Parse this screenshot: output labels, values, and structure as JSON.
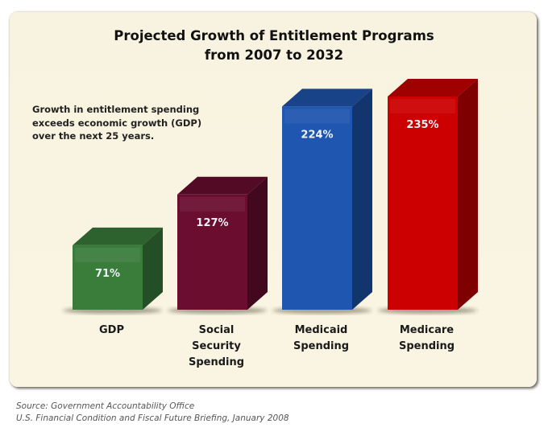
{
  "chart_data": {
    "type": "bar",
    "style": "3d-column",
    "title": "Projected Growth of Entitlement Programs",
    "subtitle": "from 2007 to 2032",
    "annotation": [
      "Growth in entitlement spending",
      "exceeds economic growth (GDP)",
      "over the next 25 years."
    ],
    "categories": [
      [
        "GDP"
      ],
      [
        "Social",
        "Security",
        "Spending"
      ],
      [
        "Medicaid",
        "Spending"
      ],
      [
        "Medicare",
        "Spending"
      ]
    ],
    "values": [
      71,
      127,
      224,
      235
    ],
    "value_labels": [
      "71%",
      "127%",
      "224%",
      "235%"
    ],
    "colors": [
      "#3a7d3b",
      "#6a0d2e",
      "#1f56b0",
      "#cc0000"
    ],
    "xlabel": "",
    "ylabel": "",
    "ylim": [
      0,
      235
    ],
    "grid": false,
    "legend": "none"
  },
  "source": {
    "line1": "Source: Government Accountability Office",
    "line2": "U.S. Financial Condition and Fiscal Future Briefing, January 2008"
  }
}
